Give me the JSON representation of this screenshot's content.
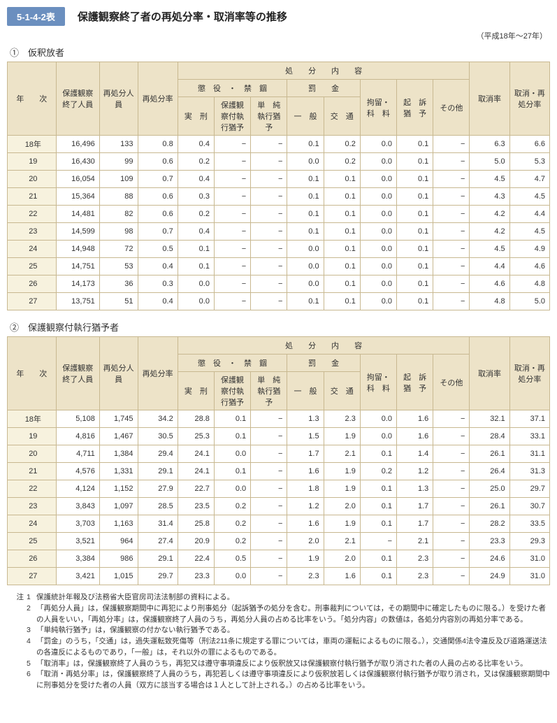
{
  "header": {
    "tab": "5-1-4-2表",
    "title": "保護観察終了者の再処分率・取消率等の推移",
    "period": "（平成18年〜27年）"
  },
  "section1": {
    "label": "①　仮釈放者",
    "rows": [
      {
        "y": "18年",
        "a": "16,496",
        "b": "133",
        "c": "0.8",
        "d": "0.4",
        "e": "−",
        "f": "−",
        "g": "0.1",
        "h": "0.2",
        "i": "0.0",
        "j": "0.1",
        "k": "−",
        "l": "6.3",
        "m": "6.6"
      },
      {
        "y": "19",
        "a": "16,430",
        "b": "99",
        "c": "0.6",
        "d": "0.2",
        "e": "−",
        "f": "−",
        "g": "0.0",
        "h": "0.2",
        "i": "0.0",
        "j": "0.1",
        "k": "−",
        "l": "5.0",
        "m": "5.3"
      },
      {
        "y": "20",
        "a": "16,054",
        "b": "109",
        "c": "0.7",
        "d": "0.4",
        "e": "−",
        "f": "−",
        "g": "0.1",
        "h": "0.1",
        "i": "0.0",
        "j": "0.1",
        "k": "−",
        "l": "4.5",
        "m": "4.7"
      },
      {
        "y": "21",
        "a": "15,364",
        "b": "88",
        "c": "0.6",
        "d": "0.3",
        "e": "−",
        "f": "−",
        "g": "0.1",
        "h": "0.1",
        "i": "0.0",
        "j": "0.1",
        "k": "−",
        "l": "4.3",
        "m": "4.5"
      },
      {
        "y": "22",
        "a": "14,481",
        "b": "82",
        "c": "0.6",
        "d": "0.2",
        "e": "−",
        "f": "−",
        "g": "0.1",
        "h": "0.1",
        "i": "0.0",
        "j": "0.1",
        "k": "−",
        "l": "4.2",
        "m": "4.4"
      },
      {
        "y": "23",
        "a": "14,599",
        "b": "98",
        "c": "0.7",
        "d": "0.4",
        "e": "−",
        "f": "−",
        "g": "0.1",
        "h": "0.1",
        "i": "0.0",
        "j": "0.1",
        "k": "−",
        "l": "4.2",
        "m": "4.5"
      },
      {
        "y": "24",
        "a": "14,948",
        "b": "72",
        "c": "0.5",
        "d": "0.1",
        "e": "−",
        "f": "−",
        "g": "0.0",
        "h": "0.1",
        "i": "0.0",
        "j": "0.1",
        "k": "−",
        "l": "4.5",
        "m": "4.9"
      },
      {
        "y": "25",
        "a": "14,751",
        "b": "53",
        "c": "0.4",
        "d": "0.1",
        "e": "−",
        "f": "−",
        "g": "0.0",
        "h": "0.1",
        "i": "0.0",
        "j": "0.1",
        "k": "−",
        "l": "4.4",
        "m": "4.6"
      },
      {
        "y": "26",
        "a": "14,173",
        "b": "36",
        "c": "0.3",
        "d": "0.0",
        "e": "−",
        "f": "−",
        "g": "0.0",
        "h": "0.1",
        "i": "0.0",
        "j": "0.1",
        "k": "−",
        "l": "4.6",
        "m": "4.8"
      },
      {
        "y": "27",
        "a": "13,751",
        "b": "51",
        "c": "0.4",
        "d": "0.0",
        "e": "−",
        "f": "−",
        "g": "0.1",
        "h": "0.1",
        "i": "0.0",
        "j": "0.1",
        "k": "−",
        "l": "4.8",
        "m": "5.0"
      }
    ]
  },
  "section2": {
    "label": "②　保護観察付執行猶予者",
    "rows": [
      {
        "y": "18年",
        "a": "5,108",
        "b": "1,745",
        "c": "34.2",
        "d": "28.8",
        "e": "0.1",
        "f": "−",
        "g": "1.3",
        "h": "2.3",
        "i": "0.0",
        "j": "1.6",
        "k": "−",
        "l": "32.1",
        "m": "37.1"
      },
      {
        "y": "19",
        "a": "4,816",
        "b": "1,467",
        "c": "30.5",
        "d": "25.3",
        "e": "0.1",
        "f": "−",
        "g": "1.5",
        "h": "1.9",
        "i": "0.0",
        "j": "1.6",
        "k": "−",
        "l": "28.4",
        "m": "33.1"
      },
      {
        "y": "20",
        "a": "4,711",
        "b": "1,384",
        "c": "29.4",
        "d": "24.1",
        "e": "0.0",
        "f": "−",
        "g": "1.7",
        "h": "2.1",
        "i": "0.1",
        "j": "1.4",
        "k": "−",
        "l": "26.1",
        "m": "31.1"
      },
      {
        "y": "21",
        "a": "4,576",
        "b": "1,331",
        "c": "29.1",
        "d": "24.1",
        "e": "0.1",
        "f": "−",
        "g": "1.6",
        "h": "1.9",
        "i": "0.2",
        "j": "1.2",
        "k": "−",
        "l": "26.4",
        "m": "31.3"
      },
      {
        "y": "22",
        "a": "4,124",
        "b": "1,152",
        "c": "27.9",
        "d": "22.7",
        "e": "0.0",
        "f": "−",
        "g": "1.8",
        "h": "1.9",
        "i": "0.1",
        "j": "1.3",
        "k": "−",
        "l": "25.0",
        "m": "29.7"
      },
      {
        "y": "23",
        "a": "3,843",
        "b": "1,097",
        "c": "28.5",
        "d": "23.5",
        "e": "0.2",
        "f": "−",
        "g": "1.2",
        "h": "2.0",
        "i": "0.1",
        "j": "1.7",
        "k": "−",
        "l": "26.1",
        "m": "30.7"
      },
      {
        "y": "24",
        "a": "3,703",
        "b": "1,163",
        "c": "31.4",
        "d": "25.8",
        "e": "0.2",
        "f": "−",
        "g": "1.6",
        "h": "1.9",
        "i": "0.1",
        "j": "1.7",
        "k": "−",
        "l": "28.2",
        "m": "33.5"
      },
      {
        "y": "25",
        "a": "3,521",
        "b": "964",
        "c": "27.4",
        "d": "20.9",
        "e": "0.2",
        "f": "−",
        "g": "2.0",
        "h": "2.1",
        "i": "−",
        "j": "2.1",
        "k": "−",
        "l": "23.3",
        "m": "29.3"
      },
      {
        "y": "26",
        "a": "3,384",
        "b": "986",
        "c": "29.1",
        "d": "22.4",
        "e": "0.5",
        "f": "−",
        "g": "1.9",
        "h": "2.0",
        "i": "0.1",
        "j": "2.3",
        "k": "−",
        "l": "24.6",
        "m": "31.0"
      },
      {
        "y": "27",
        "a": "3,421",
        "b": "1,015",
        "c": "29.7",
        "d": "23.3",
        "e": "0.0",
        "f": "−",
        "g": "2.3",
        "h": "1.6",
        "i": "0.1",
        "j": "2.3",
        "k": "−",
        "l": "24.9",
        "m": "31.0"
      }
    ]
  },
  "cols": {
    "year": "年　　次",
    "c1": "保護観察終了人員",
    "c2": "再処分人　員",
    "c3": "再処分率",
    "g1": "処　　分　　内　　容",
    "g2": "懲　役　・　禁　錮",
    "g3": "罰　　金",
    "s1": "実　刑",
    "s2": "保護観察付執行猶予",
    "s3": "単　純執行猶予",
    "s4": "一　般",
    "s5": "交　通",
    "c4": "拘留・科　料",
    "c5": "起　訴猶　予",
    "c6": "その他",
    "c7": "取消率",
    "c8": "取消・再処分率"
  },
  "notes": {
    "lead": "注",
    "items": [
      "保護統計年報及び法務省大臣官房司法法制部の資料による。",
      "「再処分人員」は，保護観察期間中に再犯により刑事処分（起訴猶予の処分を含む。刑事裁判については，その期間中に確定したものに限る。）を受けた者の人員をいい，「再処分率」は，保護観察終了人員のうち，再処分人員の占める比率をいう。「処分内容」の数値は，各処分内容別の再処分率である。",
      "「単純執行猶予」は，保護観察の付かない執行猶予である。",
      "「罰金」のうち，「交通」は，過失運転致死傷等（刑法211条に規定する罪については，車両の運転によるものに限る。），交通関係4法令違反及び道路運送法の各違反によるものであり，「一般」は，それ以外の罪によるものである。",
      "「取消率」は，保護観察終了人員のうち，再犯又は遵守事項違反により仮釈放又は保護観察付執行猶予が取り消された者の人員の占める比率をいう。",
      "「取消・再処分率」は，保護観察終了人員のうち，再犯若しくは遵守事項違反により仮釈放若しくは保護観察付執行猶予が取り消され，又は保護観察期間中に刑事処分を受けた者の人員（双方に該当する場合は１人として計上される。）の占める比率をいう。"
    ]
  }
}
